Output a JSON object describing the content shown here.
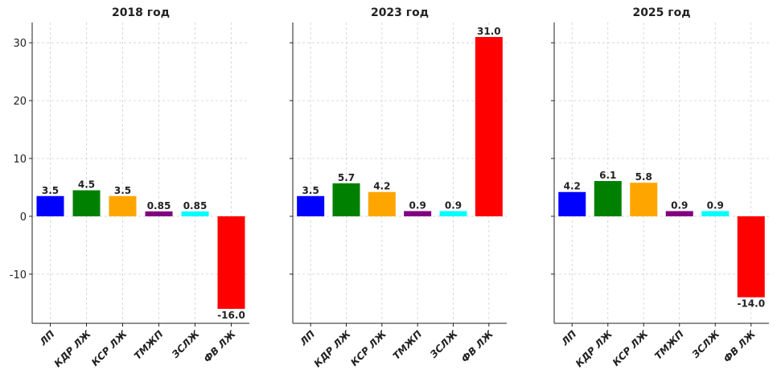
{
  "chart_data": [
    {
      "type": "bar",
      "title": "2018 год",
      "categories": [
        "ЛП",
        "КДР ЛЖ",
        "КСР ЛЖ",
        "ТМЖП",
        "ЗСЛЖ",
        "ФВ ЛЖ"
      ],
      "values": [
        3.5,
        4.5,
        3.5,
        0.85,
        0.85,
        -16.0
      ],
      "value_labels": [
        "3.5",
        "4.5",
        "3.5",
        "0.85",
        "0.85",
        "-16.0"
      ],
      "colors": [
        "#0000ff",
        "#008000",
        "#ffa500",
        "#800080",
        "#00ffff",
        "#ff0000"
      ],
      "yticks": [
        -10,
        0,
        10,
        20,
        30
      ],
      "ylim": [
        -18.5,
        33.5
      ],
      "grid": true
    },
    {
      "type": "bar",
      "title": "2023 год",
      "categories": [
        "ЛП",
        "КДР ЛЖ",
        "КСР ЛЖ",
        "ТМЖП",
        "ЗСЛЖ",
        "ФВ ЛЖ"
      ],
      "values": [
        3.5,
        5.7,
        4.2,
        0.9,
        0.9,
        31.0
      ],
      "value_labels": [
        "3.5",
        "5.7",
        "4.2",
        "0.9",
        "0.9",
        "31.0"
      ],
      "colors": [
        "#0000ff",
        "#008000",
        "#ffa500",
        "#800080",
        "#00ffff",
        "#ff0000"
      ],
      "ylim": [
        -18.5,
        33.5
      ],
      "grid": true
    },
    {
      "type": "bar",
      "title": "2025 год",
      "categories": [
        "ЛП",
        "КДР ЛЖ",
        "КСР ЛЖ",
        "ТМЖП",
        "ЗСЛЖ",
        "ФВ ЛЖ"
      ],
      "values": [
        4.2,
        6.1,
        5.8,
        0.9,
        0.9,
        -14.0
      ],
      "value_labels": [
        "4.2",
        "6.1",
        "5.8",
        "0.9",
        "0.9",
        "-14.0"
      ],
      "colors": [
        "#0000ff",
        "#008000",
        "#ffa500",
        "#800080",
        "#00ffff",
        "#ff0000"
      ],
      "ylim": [
        -18.5,
        33.5
      ],
      "grid": true
    }
  ]
}
